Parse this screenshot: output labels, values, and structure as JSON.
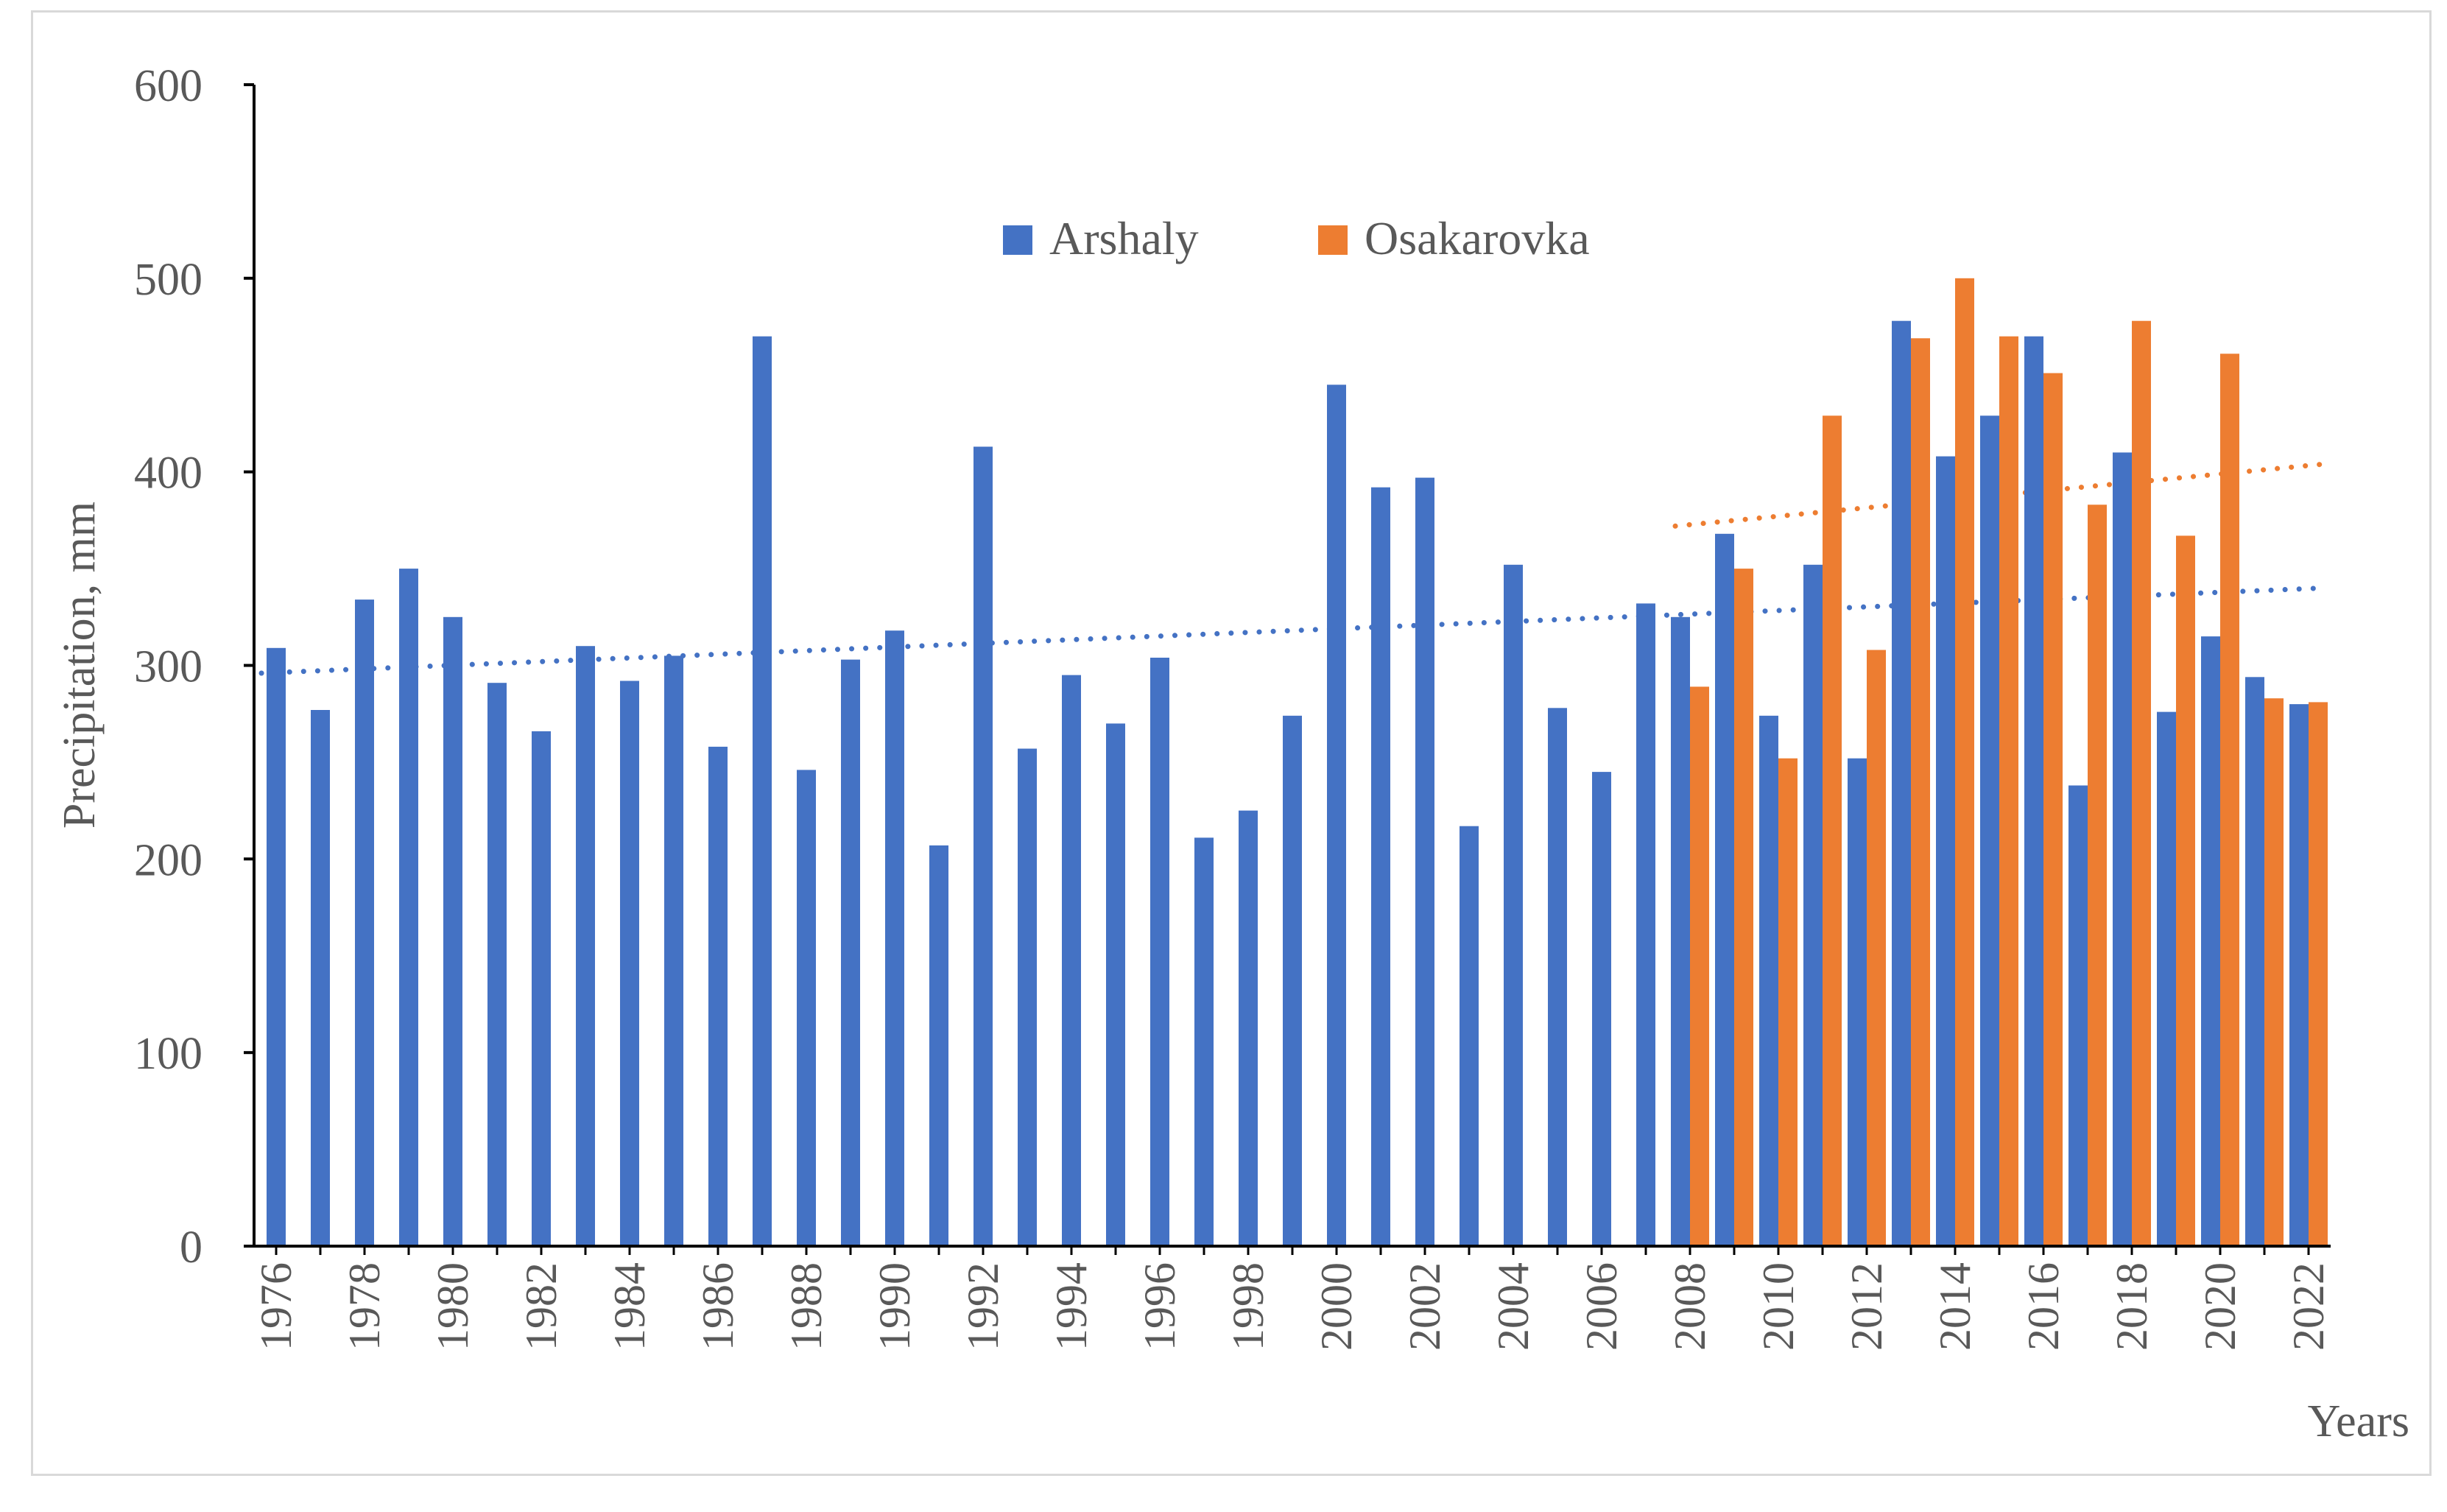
{
  "chart_data": {
    "type": "bar",
    "title": "",
    "xlabel": "Years",
    "ylabel": "Precipitation, mm",
    "ylim": [
      0,
      600
    ],
    "yticks": [
      0,
      100,
      200,
      300,
      400,
      500,
      600
    ],
    "legend_position": "top-center",
    "grid": false,
    "categories": [
      "1976",
      "1977",
      "1978",
      "1979",
      "1980",
      "1981",
      "1982",
      "1983",
      "1984",
      "1985",
      "1986",
      "1987",
      "1988",
      "1989",
      "1990",
      "1991",
      "1992",
      "1993",
      "1994",
      "1995",
      "1996",
      "1997",
      "1998",
      "1999",
      "2000",
      "2001",
      "2002",
      "2003",
      "2004",
      "2005",
      "2006",
      "2007",
      "2008",
      "2009",
      "2010",
      "2011",
      "2012",
      "2013",
      "2014",
      "2015",
      "2016",
      "2017",
      "2018",
      "2019",
      "2020",
      "2021",
      "2022"
    ],
    "x_tick_labels": [
      "1976",
      "1978",
      "1980",
      "1982",
      "1984",
      "1986",
      "1988",
      "1990",
      "1992",
      "1994",
      "1996",
      "1998",
      "2000",
      "2002",
      "2004",
      "2006",
      "2008",
      "2010",
      "2012",
      "2014",
      "2016",
      "2018",
      "2020",
      "2022"
    ],
    "series": [
      {
        "name": "Arshaly",
        "color": "#4472c4",
        "values": [
          309,
          277,
          334,
          350,
          325,
          291,
          266,
          310,
          292,
          305,
          258,
          470,
          246,
          303,
          318,
          207,
          413,
          257,
          295,
          270,
          304,
          211,
          225,
          274,
          445,
          392,
          397,
          217,
          352,
          278,
          245,
          332,
          325,
          368,
          274,
          352,
          252,
          478,
          408,
          429,
          470,
          238,
          410,
          276,
          315,
          294,
          280
        ]
      },
      {
        "name": "Osakarovka",
        "color": "#ed7d31",
        "values": [
          null,
          null,
          null,
          null,
          null,
          null,
          null,
          null,
          null,
          null,
          null,
          null,
          null,
          null,
          null,
          null,
          null,
          null,
          null,
          null,
          null,
          null,
          null,
          null,
          null,
          null,
          null,
          null,
          null,
          null,
          null,
          null,
          289,
          350,
          252,
          429,
          308,
          469,
          500,
          470,
          451,
          383,
          478,
          367,
          461,
          283,
          281
        ]
      }
    ],
    "trendlines": [
      {
        "series": "Arshaly",
        "from_year": "1976",
        "to_year": "2022",
        "start": 296,
        "end": 340
      },
      {
        "series": "Osakarovka",
        "from_year": "2008",
        "to_year": "2022",
        "start": 372,
        "end": 404
      }
    ]
  }
}
